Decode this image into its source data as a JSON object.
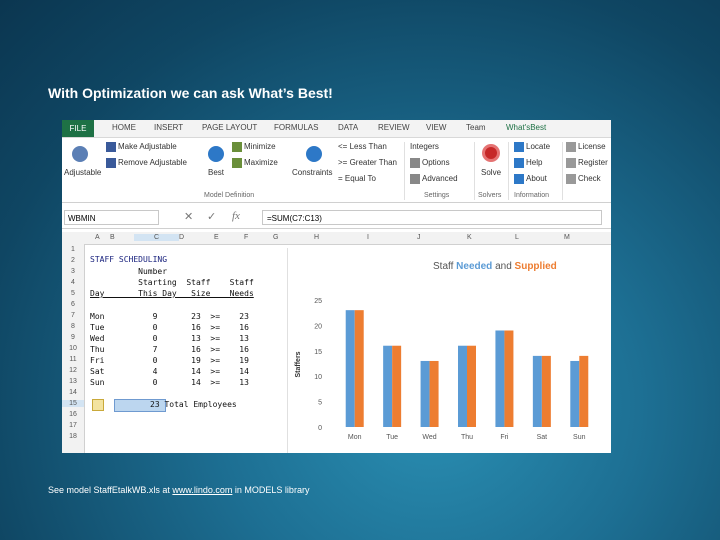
{
  "slide": {
    "title": "With Optimization we can ask What’s Best!",
    "footer_prefix": "See model StaffEtalkWB.xls at ",
    "footer_link": "www.lindo.com",
    "footer_suffix": " in MODELS library"
  },
  "ribbon_tabs": [
    "FILE",
    "HOME",
    "INSERT",
    "PAGE LAYOUT",
    "FORMULAS",
    "DATA",
    "REVIEW",
    "VIEW",
    "Team",
    "What'sBest"
  ],
  "ribbon": {
    "make_adjustable": "Make Adjustable",
    "remove_adjustable": "Remove Adjustable",
    "adjustable": "Adjustable",
    "best": "Best",
    "minimize": "Minimize",
    "maximize": "Maximize",
    "constraints": "Constraints",
    "less_than": "<= Less Than",
    "greater_than": ">= Greater Than",
    "equal_to": "Equal To",
    "integers": "Integers",
    "options": "Options",
    "advanced": "Advanced",
    "solve": "Solve",
    "locate": "Locate",
    "help": "Help",
    "about": "About",
    "license": "License",
    "register": "Register",
    "check": "Check",
    "group_model": "Model Definition",
    "group_settings": "Settings",
    "group_solvers": "Solvers",
    "group_info": "Information"
  },
  "formula_bar": {
    "name_box": "WBMIN",
    "formula": "=SUM(C7:C13)"
  },
  "columns": [
    "A",
    "B",
    "C",
    "D",
    "E",
    "F",
    "G",
    "H",
    "I",
    "J",
    "K",
    "L",
    "M"
  ],
  "rows": [
    "1",
    "2",
    "3",
    "4",
    "5",
    "6",
    "7",
    "8",
    "9",
    "10",
    "11",
    "12",
    "13",
    "14",
    "15",
    "16",
    "17",
    "18"
  ],
  "sheet": {
    "heading": "STAFF SCHEDULING",
    "hdr1": "          Number",
    "hdr2": "          Starting  Staff    Staff",
    "hdr3": "Day       This Day   Size    Needs",
    "data": [
      "Mon          9       23  >=    23",
      "Tue          0       16  >=    16",
      "Wed          0       13  >=    13",
      "Thu          7       16  >=    16",
      "Fri          0       19  >=    19",
      "Sat          4       14  >=    14",
      "Sun          0       14  >=    13"
    ],
    "total": "23 Total Employees"
  },
  "chart_data": {
    "type": "bar",
    "title_parts": [
      "Staff ",
      "Needed",
      " and ",
      "Supplied"
    ],
    "ylabel": "Staffers",
    "categories": [
      "Mon",
      "Tue",
      "Wed",
      "Thu",
      "Fri",
      "Sat",
      "Sun"
    ],
    "ylim": [
      0,
      25
    ],
    "yticks": [
      0,
      5,
      10,
      15,
      20,
      25
    ],
    "series": [
      {
        "name": "Needed",
        "color": "#5b9bd5",
        "values": [
          23,
          16,
          13,
          16,
          19,
          14,
          13
        ]
      },
      {
        "name": "Supplied",
        "color": "#ed7d31",
        "values": [
          23,
          16,
          13,
          16,
          19,
          14,
          14
        ]
      }
    ]
  }
}
